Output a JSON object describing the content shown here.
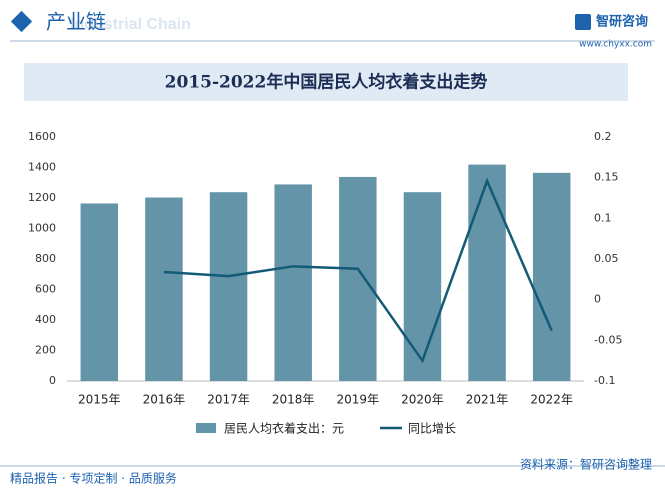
{
  "header": {
    "title": "产业链",
    "watermark": "Industrial Chain",
    "logo": "智研咨询",
    "url": "www.chyxx.com"
  },
  "chart_data": {
    "type": "combo",
    "title": "2015-2022年中国居民人均衣着支出走势",
    "categories": [
      "2015年",
      "2016年",
      "2017年",
      "2018年",
      "2019年",
      "2020年",
      "2021年",
      "2022年"
    ],
    "series": [
      {
        "name": "居民人均衣着支出：元",
        "type": "bar",
        "color": "#6494a8",
        "values": [
          1164,
          1203,
          1238,
          1289,
          1338,
          1238,
          1419,
          1365
        ]
      },
      {
        "name": "同比增长",
        "type": "line",
        "axis": "y2",
        "color": "#135a77",
        "values": [
          null,
          0.034,
          0.029,
          0.041,
          0.038,
          -0.075,
          0.146,
          -0.038
        ]
      }
    ],
    "ylim": [
      0,
      1600
    ],
    "yticks": [
      0,
      200,
      400,
      600,
      800,
      1000,
      1200,
      1400,
      1600
    ],
    "y2lim": [
      -0.1,
      0.2
    ],
    "y2ticks": [
      -0.1,
      -0.05,
      0,
      0.05,
      0.1,
      0.15,
      0.2
    ]
  },
  "footer": {
    "slogan": "精品报告 · 专项定制 · 品质服务",
    "source": "资料来源：智研咨询整理"
  }
}
